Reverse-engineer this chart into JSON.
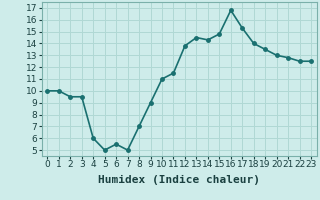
{
  "x": [
    0,
    1,
    2,
    3,
    4,
    5,
    6,
    7,
    8,
    9,
    10,
    11,
    12,
    13,
    14,
    15,
    16,
    17,
    18,
    19,
    20,
    21,
    22,
    23
  ],
  "y": [
    10,
    10,
    9.5,
    9.5,
    6,
    5,
    5.5,
    5,
    7,
    9,
    11,
    11.5,
    13.8,
    14.5,
    14.3,
    14.8,
    16.8,
    15.3,
    14,
    13.5,
    13,
    12.8,
    12.5,
    12.5
  ],
  "xlabel": "Humidex (Indice chaleur)",
  "xlim": [
    -0.5,
    23.5
  ],
  "ylim": [
    4.5,
    17.5
  ],
  "yticks": [
    5,
    6,
    7,
    8,
    9,
    10,
    11,
    12,
    13,
    14,
    15,
    16,
    17
  ],
  "xticks": [
    0,
    1,
    2,
    3,
    4,
    5,
    6,
    7,
    8,
    9,
    10,
    11,
    12,
    13,
    14,
    15,
    16,
    17,
    18,
    19,
    20,
    21,
    22,
    23
  ],
  "line_color": "#1a7070",
  "marker_color": "#1a7070",
  "bg_color": "#ceecea",
  "grid_color": "#b0d8d4",
  "xlabel_fontsize": 8,
  "tick_fontsize": 6.5,
  "line_width": 1.2,
  "marker_size": 2.5
}
